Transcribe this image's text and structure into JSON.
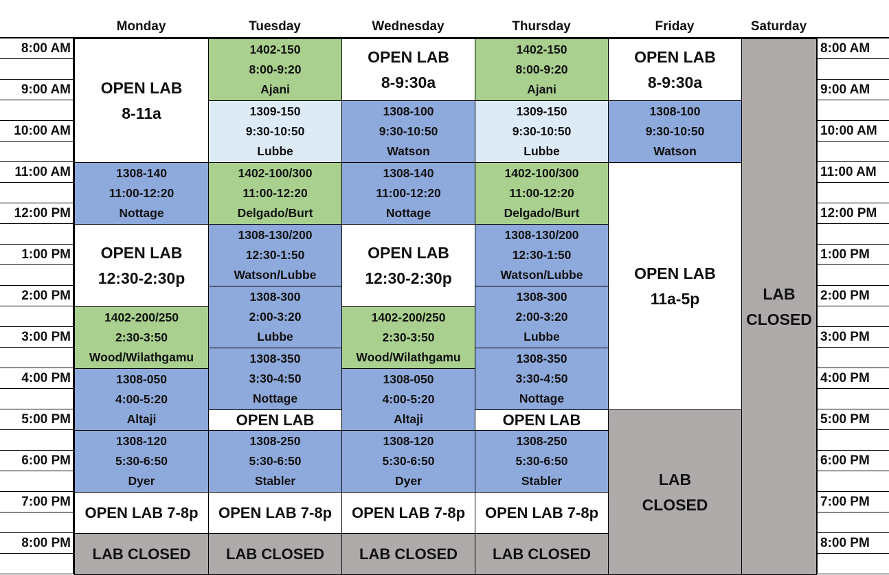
{
  "colors": {
    "green": "#a9d08e",
    "blue": "#8ea9db",
    "lightblue": "#ddebf7",
    "gray": "#aeaaaa",
    "white": "#ffffff"
  },
  "days": [
    "Monday",
    "Tuesday",
    "Wednesday",
    "Thursday",
    "Friday",
    "Saturday"
  ],
  "times": [
    "8:00 AM",
    "9:00 AM",
    "10:00 AM",
    "11:00 AM",
    "12:00 PM",
    "1:00 PM",
    "2:00 PM",
    "3:00 PM",
    "4:00 PM",
    "5:00 PM",
    "6:00 PM",
    "7:00 PM",
    "8:00 PM"
  ],
  "schedule": [
    [
      {
        "start": "8:00",
        "end": "11:00",
        "kind": "white",
        "style": "big",
        "lines": [
          "OPEN LAB",
          "8-11a"
        ]
      },
      {
        "start": "11:00",
        "end": "12:30",
        "kind": "blue",
        "lines": [
          "1308-140",
          "11:00-12:20",
          "Nottage"
        ]
      },
      {
        "start": "12:30",
        "end": "14:30",
        "kind": "white",
        "style": "big",
        "lines": [
          "OPEN LAB",
          "12:30-2:30p"
        ]
      },
      {
        "start": "14:30",
        "end": "16:00",
        "kind": "green",
        "lines": [
          "1402-200/250",
          "2:30-3:50",
          "Wood/Wilathgamu"
        ]
      },
      {
        "start": "16:00",
        "end": "17:30",
        "kind": "blue",
        "lines": [
          "1308-050",
          "4:00-5:20",
          "Altaji"
        ]
      },
      {
        "start": "17:30",
        "end": "19:00",
        "kind": "blue",
        "lines": [
          "1308-120",
          "5:30-6:50",
          "Dyer"
        ]
      },
      {
        "start": "19:00",
        "end": "20:00",
        "kind": "white",
        "style": "one",
        "lines": [
          "OPEN LAB 7-8p"
        ]
      },
      {
        "start": "20:00",
        "end": "21:00",
        "kind": "gray",
        "style": "one",
        "lines": [
          "LAB CLOSED"
        ]
      }
    ],
    [
      {
        "start": "8:00",
        "end": "9:30",
        "kind": "green",
        "lines": [
          "1402-150",
          "8:00-9:20",
          "Ajani"
        ]
      },
      {
        "start": "9:30",
        "end": "11:00",
        "kind": "lightblue",
        "lines": [
          "1309-150",
          "9:30-10:50",
          "Lubbe"
        ]
      },
      {
        "start": "11:00",
        "end": "12:30",
        "kind": "green",
        "lines": [
          "1402-100/300",
          "11:00-12:20",
          "Delgado/Burt"
        ]
      },
      {
        "start": "12:30",
        "end": "14:00",
        "kind": "blue",
        "lines": [
          "1308-130/200",
          "12:30-1:50",
          "Watson/Lubbe"
        ]
      },
      {
        "start": "14:00",
        "end": "15:30",
        "kind": "blue",
        "lines": [
          "1308-300",
          "2:00-3:20",
          "Lubbe"
        ]
      },
      {
        "start": "15:30",
        "end": "17:00",
        "kind": "blue",
        "lines": [
          "1308-350",
          "3:30-4:50",
          "Nottage"
        ]
      },
      {
        "start": "17:00",
        "end": "17:30",
        "kind": "white",
        "style": "one",
        "lines": [
          "OPEN LAB"
        ]
      },
      {
        "start": "17:30",
        "end": "19:00",
        "kind": "blue",
        "lines": [
          "1308-250",
          "5:30-6:50",
          "Stabler"
        ]
      },
      {
        "start": "19:00",
        "end": "20:00",
        "kind": "white",
        "style": "one",
        "lines": [
          "OPEN LAB 7-8p"
        ]
      },
      {
        "start": "20:00",
        "end": "21:00",
        "kind": "gray",
        "style": "one",
        "lines": [
          "LAB CLOSED"
        ]
      }
    ],
    [
      {
        "start": "8:00",
        "end": "9:30",
        "kind": "white",
        "style": "big",
        "lines": [
          "OPEN LAB",
          "8-9:30a"
        ]
      },
      {
        "start": "9:30",
        "end": "11:00",
        "kind": "blue",
        "lines": [
          "1308-100",
          "9:30-10:50",
          "Watson"
        ]
      },
      {
        "start": "11:00",
        "end": "12:30",
        "kind": "blue",
        "lines": [
          "1308-140",
          "11:00-12:20",
          "Nottage"
        ]
      },
      {
        "start": "12:30",
        "end": "14:30",
        "kind": "white",
        "style": "big",
        "lines": [
          "OPEN LAB",
          "12:30-2:30p"
        ]
      },
      {
        "start": "14:30",
        "end": "16:00",
        "kind": "green",
        "lines": [
          "1402-200/250",
          "2:30-3:50",
          "Wood/Wilathgamu"
        ]
      },
      {
        "start": "16:00",
        "end": "17:30",
        "kind": "blue",
        "lines": [
          "1308-050",
          "4:00-5:20",
          "Altaji"
        ]
      },
      {
        "start": "17:30",
        "end": "19:00",
        "kind": "blue",
        "lines": [
          "1308-120",
          "5:30-6:50",
          "Dyer"
        ]
      },
      {
        "start": "19:00",
        "end": "20:00",
        "kind": "white",
        "style": "one",
        "lines": [
          "OPEN LAB 7-8p"
        ]
      },
      {
        "start": "20:00",
        "end": "21:00",
        "kind": "gray",
        "style": "one",
        "lines": [
          "LAB CLOSED"
        ]
      }
    ],
    [
      {
        "start": "8:00",
        "end": "9:30",
        "kind": "green",
        "lines": [
          "1402-150",
          "8:00-9:20",
          "Ajani"
        ]
      },
      {
        "start": "9:30",
        "end": "11:00",
        "kind": "lightblue",
        "lines": [
          "1309-150",
          "9:30-10:50",
          "Lubbe"
        ]
      },
      {
        "start": "11:00",
        "end": "12:30",
        "kind": "green",
        "lines": [
          "1402-100/300",
          "11:00-12:20",
          "Delgado/Burt"
        ]
      },
      {
        "start": "12:30",
        "end": "14:00",
        "kind": "blue",
        "lines": [
          "1308-130/200",
          "12:30-1:50",
          "Watson/Lubbe"
        ]
      },
      {
        "start": "14:00",
        "end": "15:30",
        "kind": "blue",
        "lines": [
          "1308-300",
          "2:00-3:20",
          "Lubbe"
        ]
      },
      {
        "start": "15:30",
        "end": "17:00",
        "kind": "blue",
        "lines": [
          "1308-350",
          "3:30-4:50",
          "Nottage"
        ]
      },
      {
        "start": "17:00",
        "end": "17:30",
        "kind": "white",
        "style": "one",
        "lines": [
          "OPEN LAB"
        ]
      },
      {
        "start": "17:30",
        "end": "19:00",
        "kind": "blue",
        "lines": [
          "1308-250",
          "5:30-6:50",
          "Stabler"
        ]
      },
      {
        "start": "19:00",
        "end": "20:00",
        "kind": "white",
        "style": "one",
        "lines": [
          "OPEN LAB 7-8p"
        ]
      },
      {
        "start": "20:00",
        "end": "21:00",
        "kind": "gray",
        "style": "one",
        "lines": [
          "LAB CLOSED"
        ]
      }
    ],
    [
      {
        "start": "8:00",
        "end": "9:30",
        "kind": "white",
        "style": "big",
        "lines": [
          "OPEN LAB",
          "8-9:30a"
        ]
      },
      {
        "start": "9:30",
        "end": "11:00",
        "kind": "blue",
        "lines": [
          "1308-100",
          "9:30-10:50",
          "Watson"
        ]
      },
      {
        "start": "11:00",
        "end": "17:00",
        "kind": "white",
        "style": "big",
        "lines": [
          "OPEN LAB",
          "11a-5p"
        ]
      },
      {
        "start": "17:00",
        "end": "21:00",
        "kind": "gray",
        "style": "big",
        "lines": [
          "LAB",
          "CLOSED"
        ]
      }
    ],
    [
      {
        "start": "8:00",
        "end": "21:00",
        "kind": "gray",
        "style": "big",
        "lines": [
          "LAB",
          "CLOSED"
        ]
      }
    ]
  ]
}
